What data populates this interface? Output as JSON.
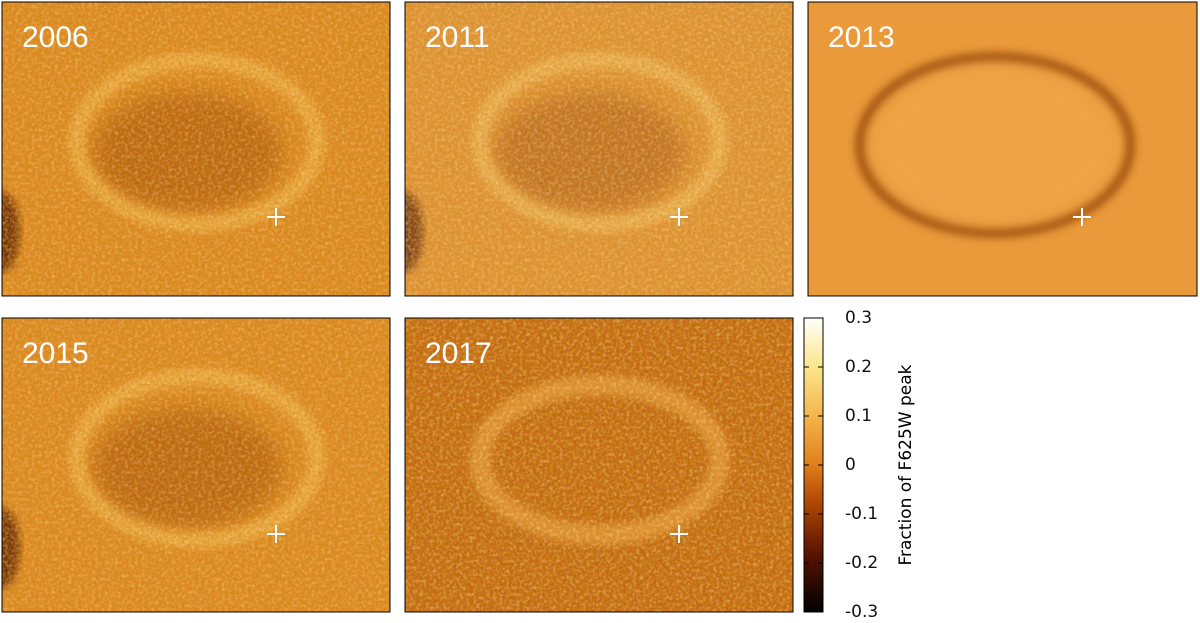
{
  "panels": [
    {
      "label": "2006"
    },
    {
      "label": "2011"
    },
    {
      "label": "2013"
    },
    {
      "label": "2015"
    },
    {
      "label": "2017"
    }
  ],
  "colorbar": {
    "label": "Fraction of F625W peak",
    "lim": [
      -0.3,
      0.3
    ],
    "ticks": [
      -0.3,
      -0.2,
      -0.1,
      0,
      0.1,
      0.2,
      0.3
    ]
  }
}
